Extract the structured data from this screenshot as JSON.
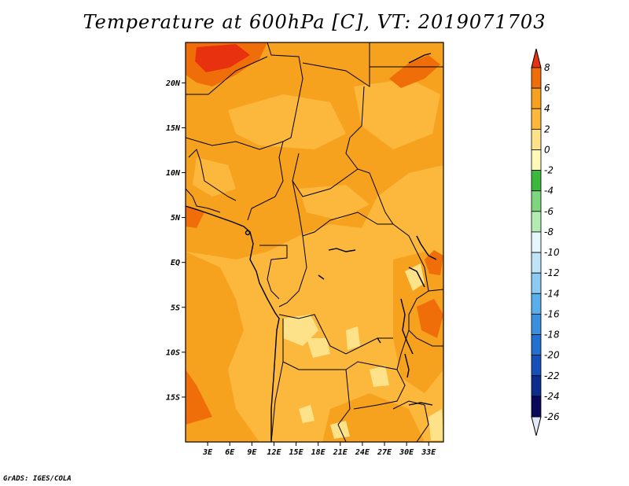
{
  "title": "Temperature at 600hPa [C], VT: 2019071703",
  "credit": "GrADS: IGES/COLA",
  "map": {
    "lon_range": [
      0,
      35
    ],
    "lat_range": [
      -20,
      24.5
    ],
    "lat_ticks": [
      {
        "value": 20,
        "label": "20N"
      },
      {
        "value": 15,
        "label": "15N"
      },
      {
        "value": 10,
        "label": "10N"
      },
      {
        "value": 5,
        "label": "5N"
      },
      {
        "value": 0,
        "label": "EQ"
      },
      {
        "value": -5,
        "label": "5S"
      },
      {
        "value": -10,
        "label": "10S"
      },
      {
        "value": -15,
        "label": "15S"
      }
    ],
    "lon_ticks": [
      {
        "value": 3,
        "label": "3E"
      },
      {
        "value": 6,
        "label": "6E"
      },
      {
        "value": 9,
        "label": "9E"
      },
      {
        "value": 12,
        "label": "12E"
      },
      {
        "value": 15,
        "label": "15E"
      },
      {
        "value": 18,
        "label": "18E"
      },
      {
        "value": 21,
        "label": "21E"
      },
      {
        "value": 24,
        "label": "24E"
      },
      {
        "value": 27,
        "label": "27E"
      },
      {
        "value": 30,
        "label": "30E"
      },
      {
        "value": 33,
        "label": "33E"
      }
    ]
  },
  "colorbar": {
    "levels": [
      "8",
      "6",
      "4",
      "2",
      "0",
      "-2",
      "-4",
      "-6",
      "-8",
      "-10",
      "-12",
      "-14",
      "-16",
      "-18",
      "-20",
      "-22",
      "-24",
      "-26"
    ],
    "colors": [
      "#e8320f",
      "#f06e0a",
      "#f7a21e",
      "#fbb83d",
      "#fde28a",
      "#fff8b8",
      "#3cb93c",
      "#7fd67f",
      "#b3ecb3",
      "#e6f7fb",
      "#bfe3f7",
      "#8ccaf2",
      "#5aaeea",
      "#3a90dd",
      "#2470d1",
      "#1750b8",
      "#0c2d8c",
      "#0b0a5a",
      "#e6e8f7"
    ]
  },
  "field_colors": {
    "warm_6_8": "#e8320f",
    "warm_4_6": "#f06e0a",
    "warm_2_4": "#f7a21e",
    "warm_0_2": "#fbb83d",
    "cool_m2_0": "#fde28a"
  }
}
